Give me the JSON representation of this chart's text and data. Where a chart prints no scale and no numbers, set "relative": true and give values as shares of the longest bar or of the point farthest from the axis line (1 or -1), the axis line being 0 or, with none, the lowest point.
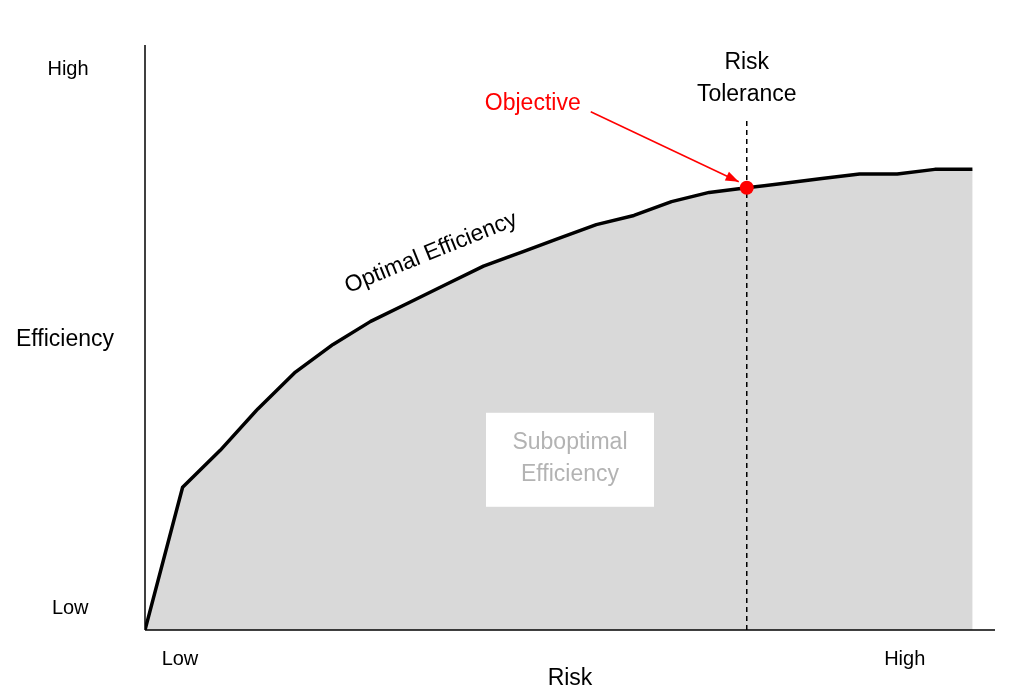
{
  "chart_data": {
    "type": "area",
    "relative": true,
    "xlabel": "Risk",
    "ylabel": "Efficiency",
    "categories": [
      null,
      null,
      null,
      null,
      null,
      null,
      null,
      null,
      null,
      null,
      null,
      null,
      null,
      null,
      null,
      null,
      null,
      null,
      null,
      null,
      null,
      null,
      null
    ],
    "series": [
      {
        "color": "#000000",
        "values": [
          0,
          0.31,
          0.39,
          0.48,
          0.56,
          0.62,
          0.67,
          0.71,
          0.75,
          0.79,
          0.82,
          0.85,
          0.88,
          0.9,
          0.93,
          0.95,
          0.96,
          0.97,
          0.98,
          0.99,
          0.99,
          1,
          1
        ]
      }
    ],
    "ref_lines": [
      {
        "axis": "x",
        "label": "Risk Tolerance",
        "color": "#000000",
        "line_style": "dashed"
      }
    ],
    "annotations": [
      "Objective",
      "Optimal Efficiency",
      "Suboptimal Efficiency",
      "High",
      "Low",
      "Low",
      "High"
    ],
    "grid": false,
    "legend": false
  }
}
